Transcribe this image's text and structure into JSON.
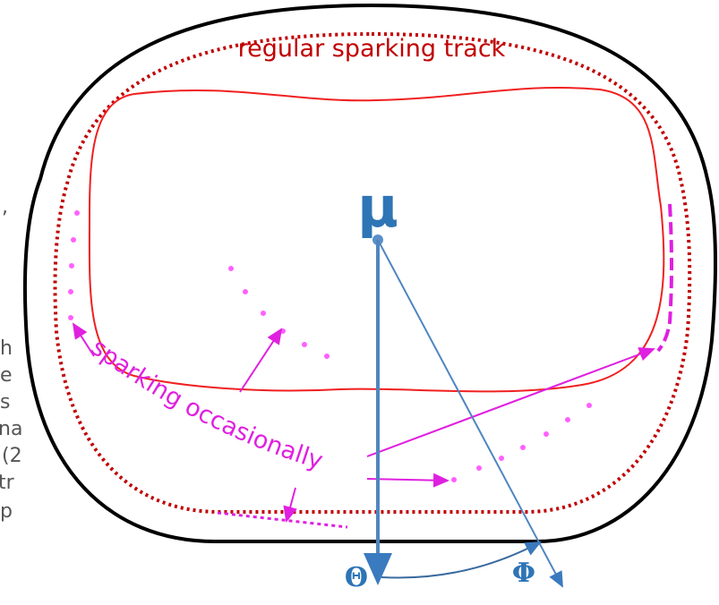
{
  "labels": {
    "track": "regular sparking track",
    "mu": "μ",
    "sparking": "sparking occasionally",
    "theta": "Θ",
    "phi": "Φ"
  },
  "fragments": [
    ",",
    "h",
    "e",
    "s",
    "na",
    "'(2",
    "tr",
    "p"
  ]
}
